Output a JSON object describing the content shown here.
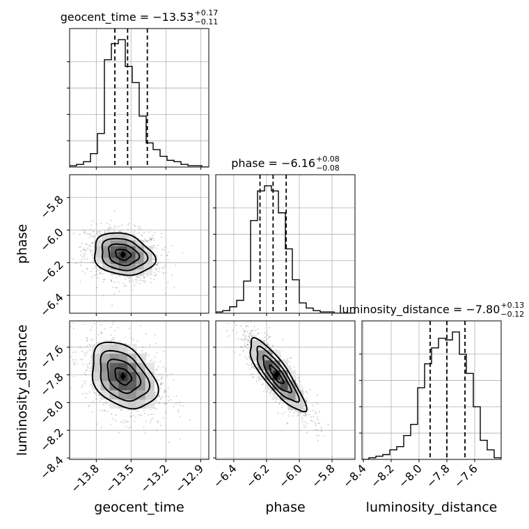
{
  "chart_data": {
    "type": "corner",
    "parameters": [
      "geocent_time",
      "phase",
      "luminosity_distance"
    ],
    "titles": [
      {
        "parameter": "geocent_time",
        "prefix": "geocent_time = ",
        "median": "−13.53",
        "plus": "+0.17",
        "minus": "−0.11"
      },
      {
        "parameter": "phase",
        "prefix": "phase = ",
        "median": "−6.16",
        "plus": "+0.08",
        "minus": "−0.08"
      },
      {
        "parameter": "luminosity_distance",
        "prefix": "luminosity_distance = ",
        "median": "−7.80",
        "plus": "+0.13",
        "minus": "−0.12"
      }
    ],
    "x_ticks": {
      "geocent_time": [
        "−13.8",
        "−13.5",
        "−13.2",
        "−12.9"
      ],
      "phase": [
        "−6.4",
        "−6.2",
        "−6.0",
        "−5.8"
      ],
      "luminosity_distance": [
        "−8.4",
        "−8.2",
        "−8.0",
        "−7.8",
        "−7.6"
      ]
    },
    "y_ticks": {
      "phase": [
        "−5.8",
        "−6.0",
        "−6.2",
        "−6.4"
      ],
      "luminosity_distance": [
        "−7.6",
        "−7.8",
        "−8.0",
        "−8.2",
        "−8.4"
      ]
    },
    "ranges": {
      "geocent_time": [
        -14.03,
        -12.83
      ],
      "phase": [
        -6.51,
        -5.66
      ],
      "luminosity_distance": [
        -8.41,
        -7.41
      ]
    },
    "histograms": {
      "geocent_time": {
        "edges": [
          -14.03,
          -13.97,
          -13.91,
          -13.85,
          -13.79,
          -13.73,
          -13.67,
          -13.61,
          -13.55,
          -13.49,
          -13.43,
          -13.37,
          -13.31,
          -13.25,
          -13.19,
          -13.13,
          -13.07,
          -13.01,
          -12.95,
          -12.89,
          -12.83
        ],
        "counts": [
          1,
          2,
          4,
          10,
          25,
          80,
          92,
          95,
          75,
          63,
          38,
          18,
          13,
          8,
          5,
          4,
          2,
          1,
          1,
          0
        ],
        "quantiles": [
          -13.64,
          -13.53,
          -13.36
        ]
      },
      "phase": {
        "edges": [
          -6.51,
          -6.4675,
          -6.425,
          -6.3825,
          -6.34,
          -6.2975,
          -6.255,
          -6.2125,
          -6.17,
          -6.1275,
          -6.085,
          -6.0425,
          -6.0,
          -5.9575,
          -5.915,
          -5.8725,
          -5.83,
          -5.7875,
          -5.745,
          -5.7025,
          -5.66
        ],
        "counts": [
          1,
          2,
          5,
          10,
          25,
          72,
          95,
          99,
          95,
          78,
          50,
          26,
          8,
          4,
          2,
          1,
          1,
          0,
          0,
          0
        ],
        "quantiles": [
          -6.24,
          -6.16,
          -6.08
        ]
      },
      "luminosity_distance": {
        "edges": [
          -8.41,
          -8.36,
          -8.31,
          -8.26,
          -8.21,
          -8.16,
          -8.11,
          -8.06,
          -8.01,
          -7.96,
          -7.91,
          -7.86,
          -7.81,
          -7.76,
          -7.71,
          -7.66,
          -7.61,
          -7.56,
          -7.51,
          -7.46,
          -7.41
        ],
        "counts": [
          0,
          1,
          2,
          3,
          6,
          8,
          15,
          22,
          45,
          60,
          70,
          76,
          75,
          80,
          66,
          54,
          33,
          12,
          6,
          1
        ],
        "quantiles": [
          -7.92,
          -7.8,
          -7.67
        ]
      }
    },
    "pairs": [
      {
        "x": "geocent_time",
        "y": "phase",
        "center": [
          -13.57,
          -6.15
        ],
        "spread": [
          0.13,
          0.065
        ],
        "correlation": -0.2
      },
      {
        "x": "geocent_time",
        "y": "luminosity_distance",
        "center": [
          -13.57,
          -7.81
        ],
        "spread": [
          0.14,
          0.12
        ],
        "correlation": -0.35
      },
      {
        "x": "phase",
        "y": "luminosity_distance",
        "center": [
          -6.14,
          -7.8
        ],
        "spread": [
          0.085,
          0.13
        ],
        "correlation": -0.85
      }
    ],
    "colors": {
      "line": "#000000",
      "grid": "#b0b0b0",
      "points": "#555555"
    }
  }
}
